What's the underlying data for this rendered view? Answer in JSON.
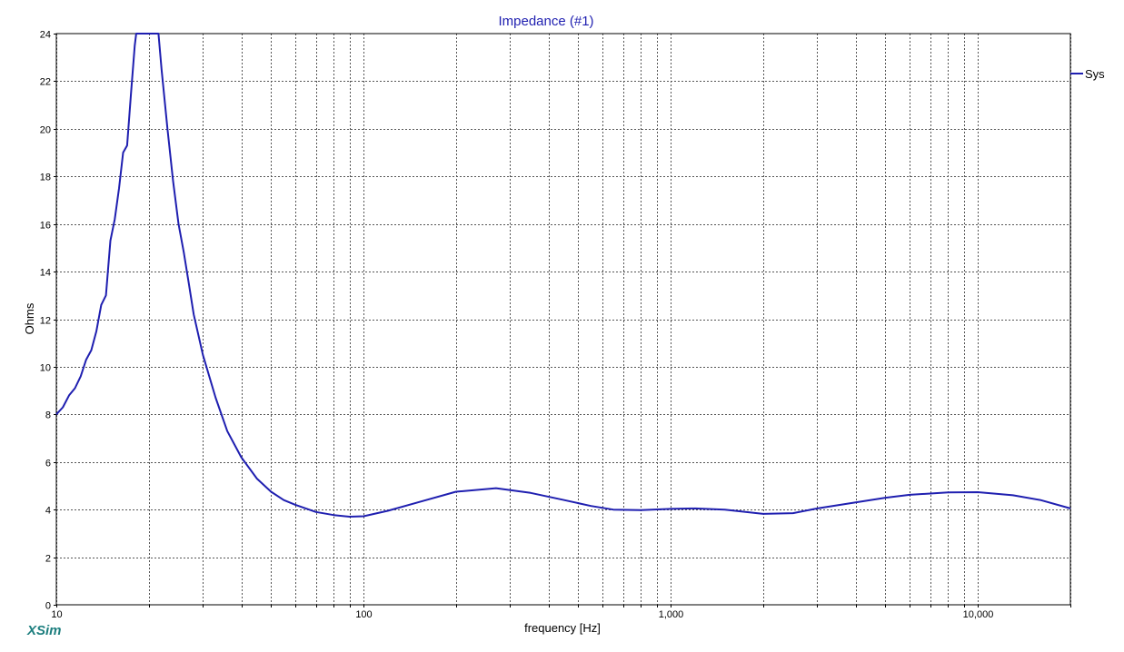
{
  "app": {
    "brand": "XSim",
    "brand_color": "#1e7f7f"
  },
  "chart_data": {
    "type": "line",
    "title": "Impedance (#1)",
    "title_color": "#1f1fb0",
    "xlabel": "frequency [Hz]",
    "ylabel": "Ohms",
    "x_scale": "log",
    "xlim": [
      10,
      20000
    ],
    "ylim": [
      0,
      24
    ],
    "x_tick_labels": [
      {
        "value": 10,
        "label": "10"
      },
      {
        "value": 100,
        "label": "100"
      },
      {
        "value": 1000,
        "label": "1,000"
      },
      {
        "value": 10000,
        "label": "10,000"
      }
    ],
    "y_ticks": [
      0,
      2,
      4,
      6,
      8,
      10,
      12,
      14,
      16,
      18,
      20,
      22,
      24
    ],
    "grid": true,
    "legend_position": "right",
    "series": [
      {
        "name": "Sys",
        "color": "#1f1fb0",
        "x": [
          10,
          10.5,
          11,
          11.5,
          12,
          12.5,
          13,
          13.5,
          14,
          14.5,
          15,
          15.5,
          16,
          16.5,
          17,
          17.5,
          18,
          18.2,
          21.5,
          22,
          23,
          24,
          25,
          26,
          27,
          28,
          30,
          33,
          36,
          40,
          45,
          50,
          55,
          60,
          70,
          80,
          90,
          100,
          120,
          150,
          200,
          270,
          350,
          450,
          550,
          650,
          800,
          1000,
          1200,
          1500,
          2000,
          2500,
          3000,
          4000,
          5000,
          6000,
          8000,
          10000,
          13000,
          16000,
          20000
        ],
        "y": [
          8.0,
          8.3,
          8.8,
          9.1,
          9.6,
          10.3,
          10.7,
          11.5,
          12.6,
          13.0,
          15.3,
          16.2,
          17.5,
          19.0,
          19.3,
          21.5,
          23.5,
          24.0,
          24.0,
          22.5,
          20.0,
          17.8,
          16.0,
          14.8,
          13.5,
          12.2,
          10.5,
          8.7,
          7.3,
          6.2,
          5.3,
          4.75,
          4.4,
          4.2,
          3.9,
          3.77,
          3.7,
          3.72,
          3.95,
          4.3,
          4.75,
          4.9,
          4.7,
          4.4,
          4.15,
          4.0,
          3.98,
          4.03,
          4.05,
          4.0,
          3.82,
          3.85,
          4.05,
          4.3,
          4.5,
          4.62,
          4.72,
          4.73,
          4.6,
          4.4,
          4.05
        ]
      }
    ]
  }
}
